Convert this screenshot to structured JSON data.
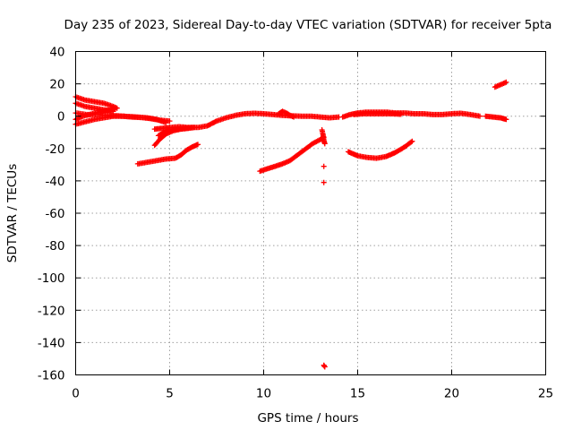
{
  "chart_data": {
    "type": "scatter",
    "title": "Day 235 of 2023, Sidereal Day-to-day VTEC variation (SDTVAR) for receiver 5pta",
    "xlabel": "GPS time / hours",
    "ylabel": "SDTVAR / TECUs",
    "xlim": [
      0,
      25
    ],
    "ylim": [
      -160,
      40
    ],
    "x_ticks": [
      0,
      5,
      10,
      15,
      20,
      25
    ],
    "y_ticks": [
      40,
      20,
      0,
      -20,
      -40,
      -60,
      -80,
      -100,
      -120,
      -140,
      -160
    ],
    "grid": true,
    "marker": "plus",
    "series": [
      {
        "name": "SDTVAR",
        "color": "#ff0000",
        "segments": [
          {
            "x": [
              0.0,
              0.5,
              1.0,
              1.5,
              2.0,
              2.2
            ],
            "y": [
              12,
              10,
              9,
              8,
              6,
              5
            ]
          },
          {
            "x": [
              0.0,
              0.5,
              1.0,
              1.5,
              2.0
            ],
            "y": [
              8,
              6,
              5,
              4,
              3
            ]
          },
          {
            "x": [
              0.0,
              0.4,
              0.9,
              1.4,
              1.9,
              2.1
            ],
            "y": [
              -2,
              0,
              1.5,
              3,
              4,
              4.5
            ]
          },
          {
            "x": [
              0.0,
              0.5,
              1.0,
              1.5,
              2.0,
              2.5,
              3.0,
              3.5,
              4.0,
              4.5,
              5.0
            ],
            "y": [
              -5,
              -3.5,
              -2,
              -1,
              0,
              0,
              -0.5,
              -0.8,
              -1.5,
              -2.5,
              -3
            ]
          },
          {
            "x": [
              0.0,
              0.6,
              1.2,
              1.8,
              2.5,
              3.2,
              3.8,
              4.3,
              4.8
            ],
            "y": [
              2,
              1,
              1,
              0.5,
              0,
              -0.5,
              -1,
              -2,
              -4
            ]
          },
          {
            "x": [
              4.2,
              4.6,
              5.0,
              5.5,
              6.0,
              6.5,
              7.0,
              7.5,
              8.0,
              8.5,
              9.0,
              9.5,
              10.0,
              10.5,
              11.0,
              11.5,
              12.0,
              12.5,
              13.0,
              13.5,
              14.0
            ],
            "y": [
              -8,
              -7.5,
              -7,
              -6.5,
              -7,
              -7,
              -6,
              -3,
              -1,
              0.5,
              1.5,
              1.8,
              1.5,
              1,
              0.5,
              0.2,
              0,
              0,
              -0.5,
              -1,
              -0.5
            ]
          },
          {
            "x": [
              4.2,
              4.5,
              4.8,
              5.2,
              5.6,
              6.0,
              6.3
            ],
            "y": [
              -18,
              -14,
              -11,
              -9,
              -8,
              -7.5,
              -7
            ]
          },
          {
            "x": [
              4.4,
              4.7,
              5.0,
              5.4,
              5.8,
              6.2
            ],
            "y": [
              -12,
              -10,
              -8.5,
              -8,
              -7.5,
              -7
            ]
          },
          {
            "x": [
              3.3,
              3.8,
              4.3,
              4.8,
              5.3,
              5.6,
              5.9,
              6.2,
              6.5
            ],
            "y": [
              -29.5,
              -28.5,
              -27.5,
              -26.5,
              -26,
              -24,
              -21,
              -19,
              -17.5
            ]
          },
          {
            "x": [
              10.8,
              11.0,
              11.2,
              11.4,
              11.6
            ],
            "y": [
              1.5,
              3,
              2,
              0.5,
              -0.5
            ]
          },
          {
            "x": [
              9.8,
              10.2,
              10.6,
              11.0,
              11.4,
              11.8,
              12.2,
              12.6,
              13.0,
              13.2
            ],
            "y": [
              -34,
              -32.5,
              -31,
              -29.5,
              -27.5,
              -24,
              -20.5,
              -17,
              -14.5,
              -13
            ]
          },
          {
            "x": [
              13.1,
              13.15,
              13.2,
              13.25
            ],
            "y": [
              -8.5,
              -11,
              -15,
              -17
            ]
          },
          {
            "x": [
              13.2
            ],
            "y": [
              -31
            ]
          },
          {
            "x": [
              13.2
            ],
            "y": [
              -41
            ]
          },
          {
            "x": [
              13.2,
              13.25
            ],
            "y": [
              -154,
              -155
            ]
          },
          {
            "x": [
              14.5,
              15.0,
              15.5,
              16.0,
              16.5,
              17.0,
              17.5,
              17.9
            ],
            "y": [
              -22,
              -24.5,
              -25.5,
              -26,
              -25,
              -22.5,
              -19,
              -15.5
            ]
          },
          {
            "x": [
              14.2,
              14.6,
              15.0,
              15.5,
              16.0,
              16.5,
              17.0,
              17.5,
              18.0,
              18.5,
              19.0,
              19.5,
              20.0,
              20.5,
              21.0,
              21.5
            ],
            "y": [
              -0.5,
              1,
              2,
              2.5,
              2.5,
              2.5,
              2,
              2,
              1.5,
              1.5,
              1,
              1,
              1.5,
              1.8,
              1,
              0
            ]
          },
          {
            "x": [
              14.8,
              15.3,
              15.8,
              16.3,
              16.8,
              17.3
            ],
            "y": [
              1,
              1.5,
              1.5,
              1.5,
              1.5,
              1.2
            ]
          },
          {
            "x": [
              21.8,
              22.2,
              22.6,
              22.9
            ],
            "y": [
              0,
              -0.5,
              -1,
              -2
            ]
          },
          {
            "x": [
              22.3,
              22.5,
              22.7,
              22.9
            ],
            "y": [
              18,
              19,
              20,
              21
            ]
          }
        ]
      }
    ]
  }
}
